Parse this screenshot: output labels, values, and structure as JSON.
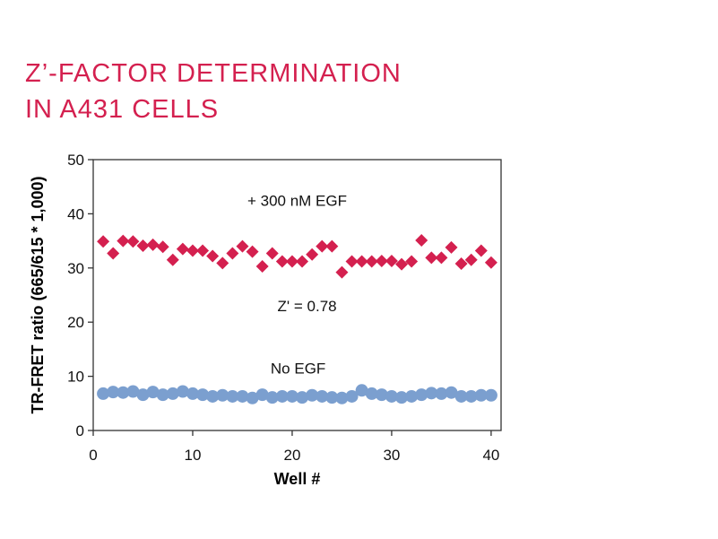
{
  "title_lines": [
    "Z’-FACTOR DETERMINATION",
    "IN A431 CELLS"
  ],
  "colors": {
    "title": "#d4204f",
    "egf": "#d4204f",
    "no_egf": "#7b9fcf"
  },
  "chart_data": {
    "type": "scatter",
    "xlabel": "Well #",
    "ylabel": "TR-FRET ratio (665/615 * 1,000)",
    "xlim": [
      0,
      41
    ],
    "ylim": [
      0,
      50
    ],
    "x_ticks": [
      0,
      10,
      20,
      30,
      40
    ],
    "y_ticks": [
      0,
      10,
      20,
      30,
      40,
      50
    ],
    "grid": false,
    "annotations": [
      {
        "text": "+ 300 nM  EGF",
        "x": 20.5,
        "y": 41.5
      },
      {
        "text": "Z' = 0.78",
        "x": 21.5,
        "y": 22.0
      },
      {
        "text": "No  EGF",
        "x": 20.6,
        "y": 10.5
      }
    ],
    "series": [
      {
        "marker": "diamond",
        "x": [
          1,
          2,
          3,
          4,
          5,
          6,
          7,
          8,
          9,
          10,
          11,
          12,
          13,
          14,
          15,
          16,
          17,
          18,
          19,
          20,
          21,
          22,
          23,
          24,
          25,
          26,
          27,
          28,
          29,
          30,
          31,
          32,
          33,
          34,
          35,
          36,
          37,
          38,
          39,
          40
        ],
        "values": [
          34.9,
          32.7,
          35.0,
          34.9,
          34.1,
          34.3,
          33.9,
          31.5,
          33.5,
          33.2,
          33.2,
          32.2,
          30.9,
          32.7,
          34.0,
          33.0,
          30.3,
          32.7,
          31.2,
          31.2,
          31.2,
          32.5,
          34.0,
          34.0,
          29.2,
          31.2,
          31.2,
          31.2,
          31.3,
          31.3,
          30.7,
          31.2,
          35.1,
          31.9,
          31.9,
          33.8,
          30.8,
          31.5,
          33.2,
          31.0
        ]
      },
      {
        "marker": "circle",
        "x": [
          1,
          2,
          3,
          4,
          5,
          6,
          7,
          8,
          9,
          10,
          11,
          12,
          13,
          14,
          15,
          16,
          17,
          18,
          19,
          20,
          21,
          22,
          23,
          24,
          25,
          26,
          27,
          28,
          29,
          30,
          31,
          32,
          33,
          34,
          35,
          36,
          37,
          38,
          39,
          40
        ],
        "values": [
          6.8,
          7.1,
          7.0,
          7.2,
          6.6,
          7.1,
          6.6,
          6.8,
          7.2,
          6.8,
          6.6,
          6.3,
          6.5,
          6.3,
          6.3,
          6.0,
          6.6,
          6.1,
          6.3,
          6.3,
          6.1,
          6.5,
          6.3,
          6.1,
          6.0,
          6.3,
          7.4,
          6.8,
          6.6,
          6.3,
          6.1,
          6.3,
          6.6,
          6.9,
          6.8,
          7.0,
          6.3,
          6.3,
          6.5,
          6.5
        ]
      }
    ]
  }
}
